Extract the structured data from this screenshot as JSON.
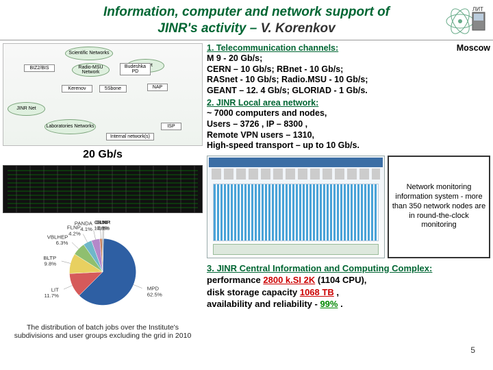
{
  "header": {
    "line1": "Information, computer and network support of",
    "line2_prefix": "JINR's activity – ",
    "author": "V. Korenkov",
    "logo_label": "ЛИТ"
  },
  "network_diagram": {
    "speed_label": "20 Gb/s",
    "clouds": [
      "Scientific Networks",
      "Radio-MSU Network",
      "RBNet",
      "JINR Net",
      "Laboratories Networks"
    ],
    "nodes": [
      "BIZ2/BIS",
      "Budeshka PD",
      "NAP",
      "Kerenov",
      "5Sbone",
      "ISP",
      "Internal network(s)"
    ]
  },
  "pie": {
    "type": "pie",
    "caption": "The distribution of batch jobs over the Institute's subdivisions and user groups excluding the grid in 2010",
    "slices": [
      {
        "label": "MPD",
        "pct": 62.5,
        "color": "#2e5fa3"
      },
      {
        "label": "LIT",
        "pct": 11.7,
        "color": "#d65a5a"
      },
      {
        "label": "BLTP",
        "pct": 9.8,
        "color": "#e8d060"
      },
      {
        "label": "VBLHEP",
        "pct": 6.3,
        "color": "#8fbf6f"
      },
      {
        "label": "FLNP",
        "pct": 4.2,
        "color": "#6fb7c9"
      },
      {
        "label": "PANDA",
        "pct": 4.1,
        "color": "#b488c9"
      },
      {
        "label": "CBM",
        "pct": 1.1,
        "color": "#c97f5a"
      },
      {
        "label": "DLNP",
        "pct": 0.6,
        "color": "#888888"
      },
      {
        "label": "FLNR",
        "pct": 0.1,
        "color": "#bbbbbb"
      }
    ]
  },
  "section1": {
    "title": "1. Telecommunication channels:",
    "location": "Moscow",
    "lines": [
      "M 9 - 20 Gb/s;",
      "CERN – 10 Gb/s;  RBnet - 10 Gb/s;",
      "RASnet - 10 Gb/s;  Radio.MSU - 10 Gb/s;",
      "GEANT – 12. 4 Gb/s;  GLORIAD - 1 Gb/s."
    ]
  },
  "section2": {
    "title": "2. JINR Local area network:",
    "lines": [
      "~ 7000 computers and nodes,",
      "Users – 3726 , IP – 8300 ,",
      "Remote VPN users – 1310,",
      "High-speed transport – up to 10 Gb/s."
    ]
  },
  "monitor_note": "Network monitoring information system - more than 350 network nodes are in round-the-clock monitoring",
  "section3": {
    "title": "3. JINR Central Information and Computing Complex:",
    "perf_label": "performance ",
    "perf_value": "2800 k.SI 2K",
    "perf_tail": " (1104 CPU),",
    "disk_label": "disk storage capacity ",
    "disk_value": "1068 TB",
    "disk_tail": " ,",
    "avail_label": "availability and reliability - ",
    "avail_value": "99%",
    "avail_tail": " ."
  },
  "page_number": "5"
}
